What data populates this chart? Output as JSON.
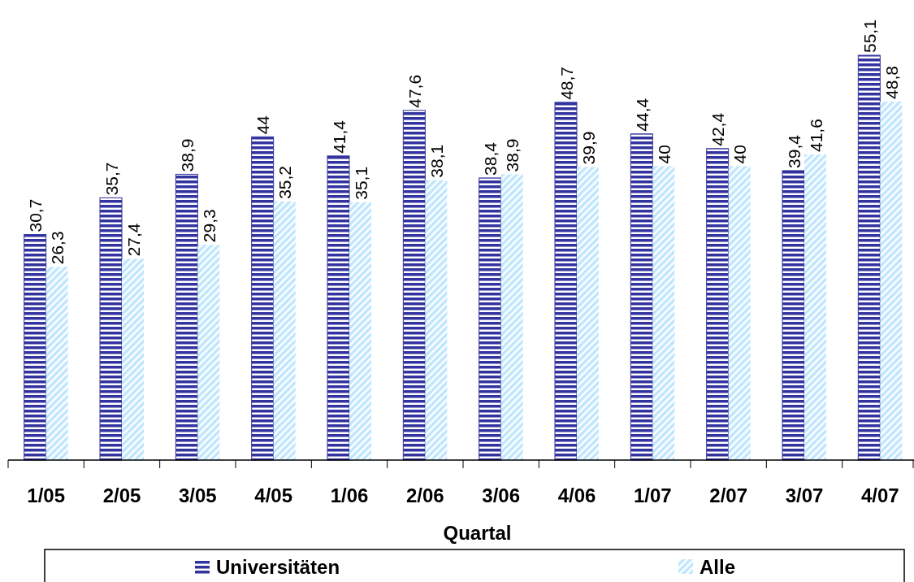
{
  "chart_data": {
    "type": "bar",
    "xlabel": "Quartal",
    "categories": [
      "1/05",
      "2/05",
      "3/05",
      "4/05",
      "1/06",
      "2/06",
      "3/06",
      "4/06",
      "1/07",
      "2/07",
      "3/07",
      "4/07"
    ],
    "series": [
      {
        "name": "Universitäten",
        "color": "#3333a0",
        "values": [
          30.7,
          35.7,
          38.9,
          44,
          41.4,
          47.6,
          38.4,
          48.7,
          44.4,
          42.4,
          39.4,
          55.1
        ],
        "value_labels": [
          "30,7",
          "35,7",
          "38,9",
          "44",
          "41,4",
          "47,6",
          "38,4",
          "48,7",
          "44,4",
          "42,4",
          "39,4",
          "55,1"
        ]
      },
      {
        "name": "Alle",
        "color": "#bfe6ff",
        "values": [
          26.3,
          27.4,
          29.3,
          35.2,
          35.1,
          38.1,
          38.9,
          39.9,
          40,
          40,
          41.6,
          48.8
        ],
        "value_labels": [
          "26,3",
          "27,4",
          "29,3",
          "35,2",
          "35,1",
          "38,1",
          "38,9",
          "39,9",
          "40",
          "40",
          "41,6",
          "48,8"
        ]
      }
    ],
    "tick_labels": "x",
    "legend": "bottom",
    "grid": false
  }
}
